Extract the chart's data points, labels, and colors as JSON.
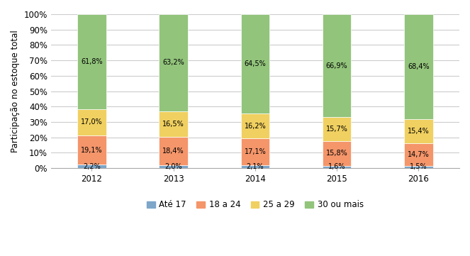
{
  "years": [
    "2012",
    "2013",
    "2014",
    "2015",
    "2016"
  ],
  "categories": [
    "Até 17",
    "18 a 24",
    "25 a 29",
    "30 ou mais"
  ],
  "values": {
    "Até 17": [
      2.2,
      2.0,
      2.1,
      1.6,
      1.5
    ],
    "18 a 24": [
      19.1,
      18.4,
      17.1,
      15.8,
      14.7
    ],
    "25 a 29": [
      17.0,
      16.5,
      16.2,
      15.7,
      15.4
    ],
    "30 ou mais": [
      61.8,
      63.2,
      64.5,
      66.9,
      68.4
    ]
  },
  "labels": {
    "Até 17": [
      "2,2%",
      "2,0%",
      "2,1%",
      "1,6%",
      "1,5%"
    ],
    "18 a 24": [
      "19,1%",
      "18,4%",
      "17,1%",
      "15,8%",
      "14,7%"
    ],
    "25 a 29": [
      "17,0%",
      "16,5%",
      "16,2%",
      "15,7%",
      "15,4%"
    ],
    "30 ou mais": [
      "61,8%",
      "63,2%",
      "64,5%",
      "66,9%",
      "68,4%"
    ]
  },
  "colors": {
    "Até 17": "#7da6c8",
    "18 a 24": "#f4956a",
    "25 a 29": "#f0d060",
    "30 ou mais": "#92c47b"
  },
  "ylabel": "Participação no estoque total",
  "yticks": [
    0,
    10,
    20,
    30,
    40,
    50,
    60,
    70,
    80,
    90,
    100
  ],
  "ytick_labels": [
    "0%",
    "10%",
    "20%",
    "30%",
    "40%",
    "50%",
    "60%",
    "70%",
    "80%",
    "90%",
    "100%"
  ],
  "bar_width": 0.35,
  "background_color": "#ffffff",
  "grid_color": "#cccccc",
  "label_fontsize": 7.0,
  "axis_fontsize": 8.5,
  "legend_fontsize": 8.5
}
